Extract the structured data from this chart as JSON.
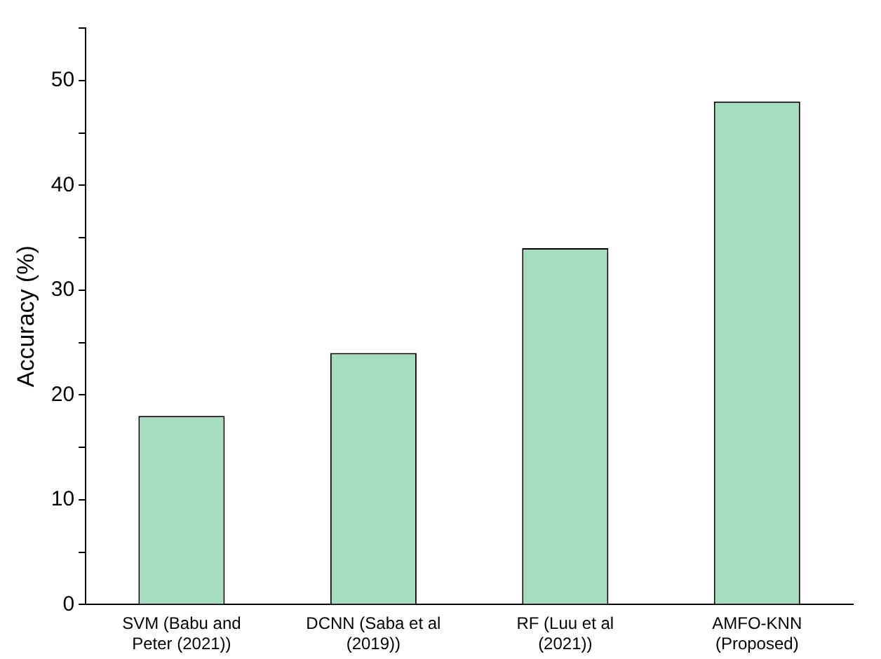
{
  "chart_data": {
    "type": "bar",
    "ylabel": "Accuracy (%)",
    "categories": [
      "SVM (Babu and Peter (2021))",
      "DCNN (Saba et al (2019))",
      "RF (Luu et al (2021))",
      "AMFO-KNN (Proposed)"
    ],
    "values": [
      18,
      24,
      34,
      48
    ],
    "color": "#a6dcc0",
    "ylim": [
      0,
      55
    ],
    "yticks": [
      0,
      {
        "value": 5,
        "label": null
      },
      10,
      {
        "value": 15,
        "label": null
      },
      20,
      {
        "value": 25,
        "label": null
      },
      30,
      {
        "value": 35,
        "label": null
      },
      40,
      {
        "value": 45,
        "label": null
      },
      50,
      {
        "value": 55,
        "label": null
      }
    ],
    "grid": false,
    "legend": false
  }
}
